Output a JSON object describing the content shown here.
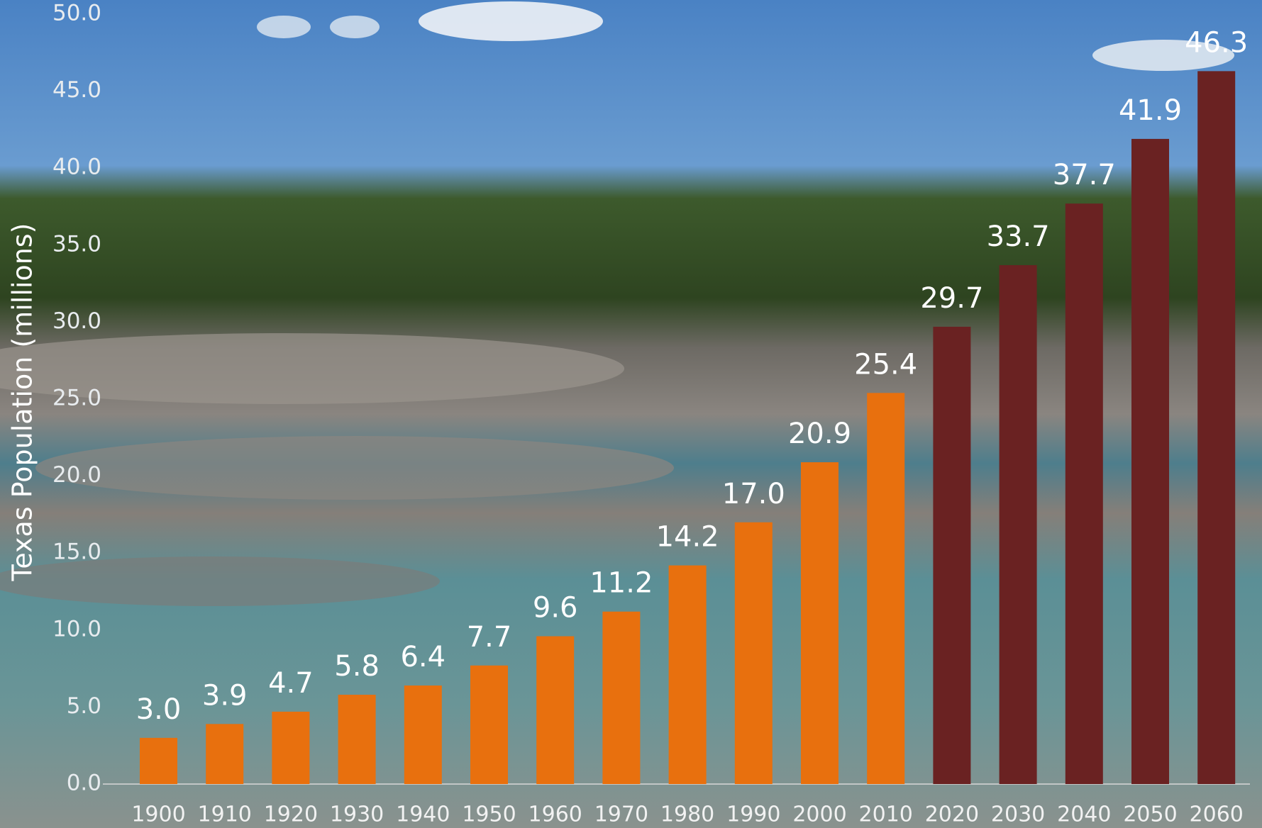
{
  "chart_data": {
    "type": "bar",
    "y_label": "Texas Population (millions)",
    "categories": [
      "1900",
      "1910",
      "1920",
      "1930",
      "1940",
      "1950",
      "1960",
      "1970",
      "1980",
      "1990",
      "2000",
      "2010",
      "2020",
      "2030",
      "2040",
      "2050",
      "2060"
    ],
    "values": [
      3.0,
      3.9,
      4.7,
      5.8,
      6.4,
      7.7,
      9.6,
      11.2,
      14.2,
      17.0,
      20.9,
      25.4,
      29.7,
      33.7,
      37.7,
      41.9,
      46.3
    ],
    "value_labels": [
      "3.0",
      "3.9",
      "4.7",
      "5.8",
      "6.4",
      "7.7",
      "9.6",
      "11.2",
      "14.2",
      "17.0",
      "20.9",
      "25.4",
      "29.7",
      "33.7",
      "37.7",
      "41.9",
      "46.3"
    ],
    "colors": [
      "#e8700e",
      "#e8700e",
      "#e8700e",
      "#e8700e",
      "#e8700e",
      "#e8700e",
      "#e8700e",
      "#e8700e",
      "#e8700e",
      "#e8700e",
      "#e8700e",
      "#e8700e",
      "#6a2222",
      "#6a2222",
      "#6a2222",
      "#6a2222",
      "#6a2222"
    ],
    "ylim": [
      0,
      50
    ],
    "yticks": [
      {
        "value": 0,
        "label": "0.0"
      },
      {
        "value": 5,
        "label": "5.0"
      },
      {
        "value": 10,
        "label": "10.0"
      },
      {
        "value": 15,
        "label": "15.0"
      },
      {
        "value": 20,
        "label": "20.0"
      },
      {
        "value": 25,
        "label": "25.0"
      },
      {
        "value": 30,
        "label": "30.0"
      },
      {
        "value": 35,
        "label": "35.0"
      },
      {
        "value": 40,
        "label": "40.0"
      },
      {
        "value": 45,
        "label": "45.0"
      },
      {
        "value": 50,
        "label": "50.0"
      }
    ],
    "grid": false
  }
}
